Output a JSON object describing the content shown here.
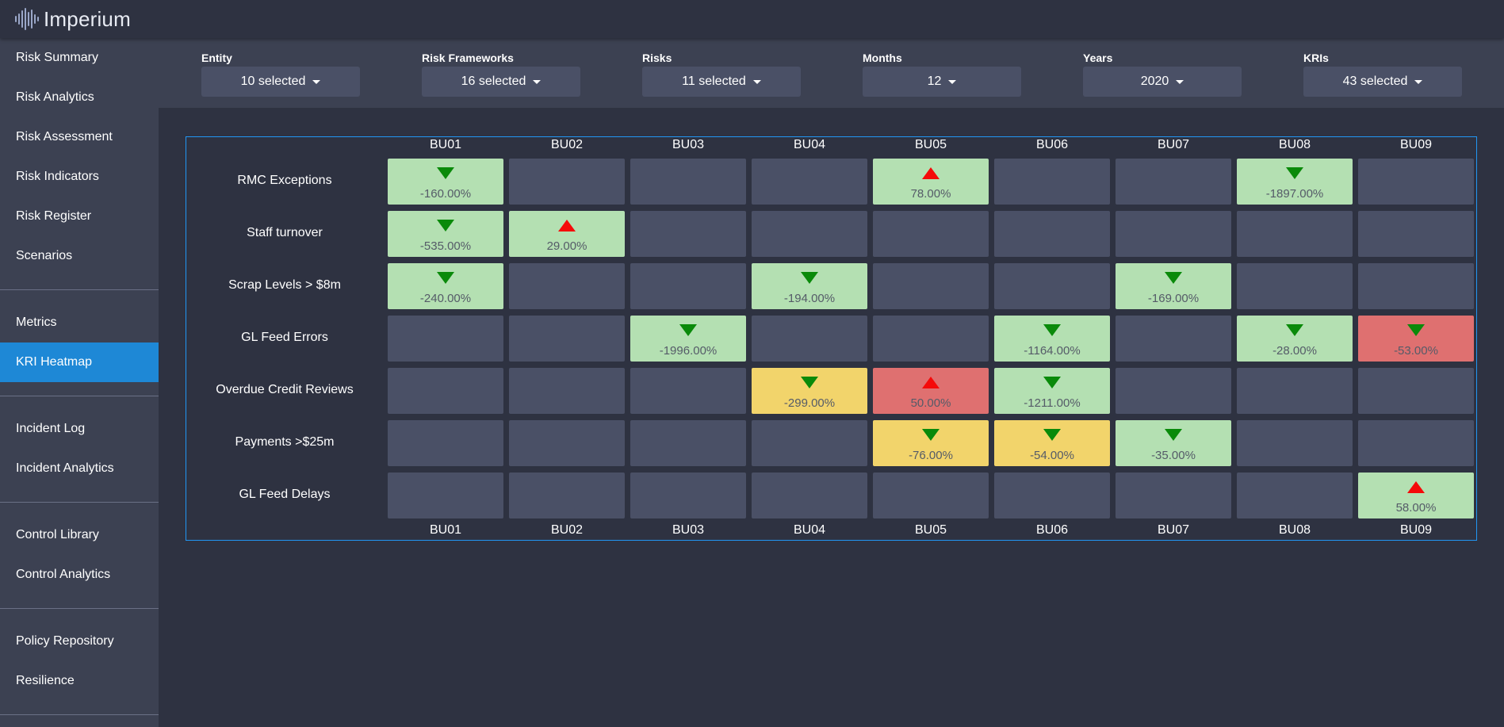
{
  "app": {
    "name": "Imperium",
    "logo_icon": "sound-wave-icon"
  },
  "sidebar": {
    "groups": [
      [
        {
          "label": "Risk Summary"
        },
        {
          "label": "Risk Analytics"
        },
        {
          "label": "Risk Assessment"
        },
        {
          "label": "Risk Indicators"
        },
        {
          "label": "Risk Register"
        },
        {
          "label": "Scenarios"
        }
      ],
      [
        {
          "label": "Metrics"
        },
        {
          "label": "KRI Heatmap",
          "active": true
        }
      ],
      [
        {
          "label": "Incident Log"
        },
        {
          "label": "Incident Analytics"
        }
      ],
      [
        {
          "label": "Control Library"
        },
        {
          "label": "Control Analytics"
        }
      ],
      [
        {
          "label": "Policy Repository"
        },
        {
          "label": "Resilience"
        }
      ]
    ],
    "active_color": "#1e88d6"
  },
  "filters": [
    {
      "label": "Entity",
      "value": "10 selected"
    },
    {
      "label": "Risk Frameworks",
      "value": "16 selected"
    },
    {
      "label": "Risks",
      "value": "11 selected"
    },
    {
      "label": "Months",
      "value": "12"
    },
    {
      "label": "Years",
      "value": "2020"
    },
    {
      "label": "KRIs",
      "value": "43 selected"
    }
  ],
  "heatmap": {
    "columns": [
      "BU01",
      "BU02",
      "BU03",
      "BU04",
      "BU05",
      "BU06",
      "BU07",
      "BU08",
      "BU09"
    ],
    "colors": {
      "green": "#b4e0b2",
      "yellow": "#f2d46b",
      "red": "#df7070",
      "empty": "#4a5066",
      "arrow_down": "#0a8a0a",
      "arrow_up": "#f50a0a"
    },
    "rows": [
      {
        "label": "RMC Exceptions",
        "cells": [
          {
            "status": "green",
            "trend": "down",
            "value": "-160.00%"
          },
          null,
          null,
          null,
          {
            "status": "green",
            "trend": "up",
            "value": "78.00%"
          },
          null,
          null,
          {
            "status": "green",
            "trend": "down",
            "value": "-1897.00%"
          },
          null
        ]
      },
      {
        "label": "Staff turnover",
        "cells": [
          {
            "status": "green",
            "trend": "down",
            "value": "-535.00%"
          },
          {
            "status": "green",
            "trend": "up",
            "value": "29.00%"
          },
          null,
          null,
          null,
          null,
          null,
          null,
          null
        ]
      },
      {
        "label": "Scrap Levels > $8m",
        "cells": [
          {
            "status": "green",
            "trend": "down",
            "value": "-240.00%"
          },
          null,
          null,
          {
            "status": "green",
            "trend": "down",
            "value": "-194.00%"
          },
          null,
          null,
          {
            "status": "green",
            "trend": "down",
            "value": "-169.00%"
          },
          null,
          null
        ]
      },
      {
        "label": "GL Feed Errors",
        "cells": [
          null,
          null,
          {
            "status": "green",
            "trend": "down",
            "value": "-1996.00%"
          },
          null,
          null,
          {
            "status": "green",
            "trend": "down",
            "value": "-1164.00%"
          },
          null,
          {
            "status": "green",
            "trend": "down",
            "value": "-28.00%"
          },
          {
            "status": "red",
            "trend": "down",
            "value": "-53.00%"
          }
        ]
      },
      {
        "label": "Overdue Credit Reviews",
        "cells": [
          null,
          null,
          null,
          {
            "status": "yellow",
            "trend": "down",
            "value": "-299.00%"
          },
          {
            "status": "red",
            "trend": "up",
            "value": "50.00%"
          },
          {
            "status": "green",
            "trend": "down",
            "value": "-1211.00%"
          },
          null,
          null,
          null
        ]
      },
      {
        "label": "Payments >$25m",
        "cells": [
          null,
          null,
          null,
          null,
          {
            "status": "yellow",
            "trend": "down",
            "value": "-76.00%"
          },
          {
            "status": "yellow",
            "trend": "down",
            "value": "-54.00%"
          },
          {
            "status": "green",
            "trend": "down",
            "value": "-35.00%"
          },
          null,
          null
        ]
      },
      {
        "label": "GL Feed Delays",
        "cells": [
          null,
          null,
          null,
          null,
          null,
          null,
          null,
          null,
          {
            "status": "green",
            "trend": "up",
            "value": "58.00%"
          }
        ]
      }
    ]
  }
}
